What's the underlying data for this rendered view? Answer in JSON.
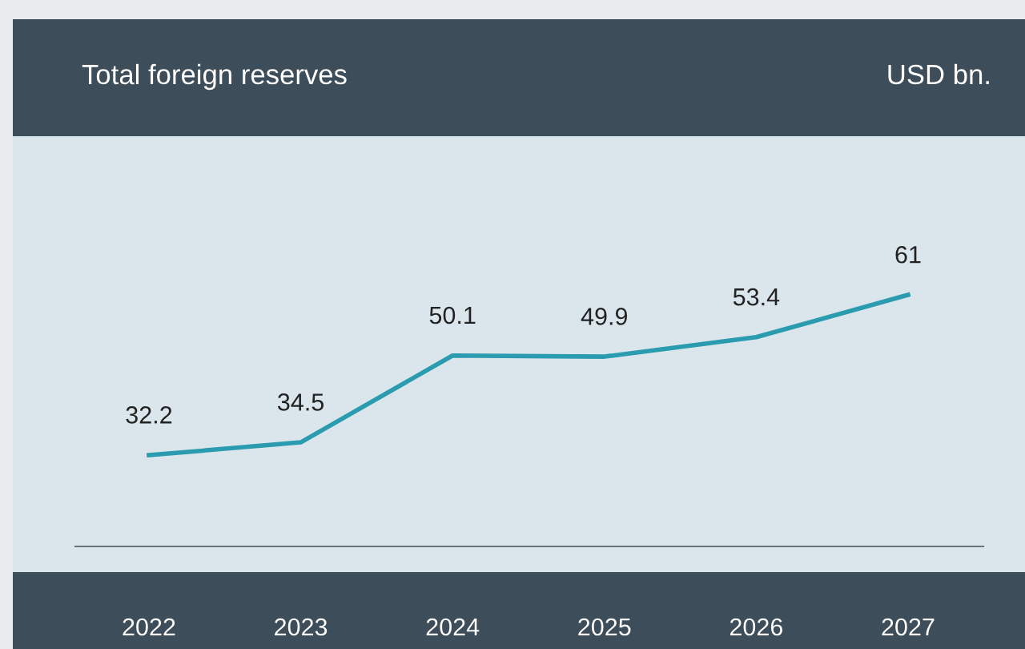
{
  "chart_data": {
    "type": "line",
    "title": "Total foreign reserves",
    "subtitle": "USD bn.",
    "categories": [
      "2022",
      "2023",
      "2024",
      "2025",
      "2026",
      "2027"
    ],
    "series": [
      {
        "color": "#2b9cb0",
        "values": [
          32.2,
          34.5,
          50.1,
          49.9,
          53.4,
          61
        ]
      }
    ],
    "ylim": [
      15.8,
      89.5
    ],
    "data_labels": true,
    "grid": false,
    "legend": false,
    "marker": "none",
    "line_style": "solid"
  }
}
